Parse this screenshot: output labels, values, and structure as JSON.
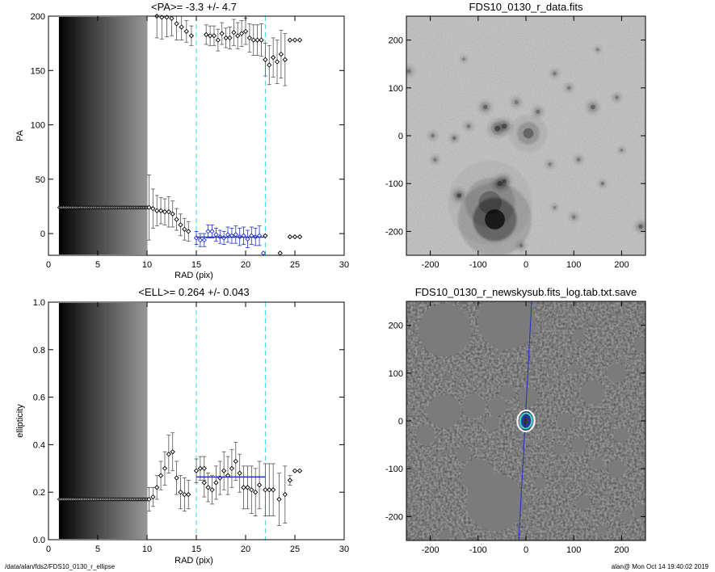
{
  "chart_data": [
    {
      "type": "scatter",
      "title": "<PA>=  -3.3 +/-   4.7",
      "xlabel": "RAD (pix)",
      "ylabel": "PA",
      "xlim": [
        0,
        30
      ],
      "ylim": [
        -20,
        200
      ],
      "xticks": [
        0,
        5,
        10,
        15,
        20,
        25,
        30
      ],
      "yticks": [
        0,
        50,
        100,
        150,
        200
      ],
      "grid": false,
      "dense_region": {
        "x_start": 1.1,
        "x_end": 10.0,
        "y_value": 24
      },
      "series": [
        {
          "kind": "points_with_errorbars",
          "color": "#000000",
          "points": [
            {
              "x": 10.2,
              "y": 24,
              "err": 30
            },
            {
              "x": 10.6,
              "y": 23,
              "err": 18
            },
            {
              "x": 11.0,
              "y": 21,
              "err": 14
            },
            {
              "x": 11.4,
              "y": 21,
              "err": 12
            },
            {
              "x": 11.8,
              "y": 20,
              "err": 12
            },
            {
              "x": 12.2,
              "y": 20,
              "err": 14
            },
            {
              "x": 12.6,
              "y": 18,
              "err": 12
            },
            {
              "x": 13.0,
              "y": 13,
              "err": 10
            },
            {
              "x": 13.4,
              "y": 8,
              "err": 10
            },
            {
              "x": 13.8,
              "y": 4,
              "err": 10
            },
            {
              "x": 14.2,
              "y": 2,
              "err": 9
            },
            {
              "x": 11.0,
              "y": 200,
              "err": 20
            },
            {
              "x": 11.5,
              "y": 199,
              "err": 20
            },
            {
              "x": 12.0,
              "y": 199,
              "err": 18
            },
            {
              "x": 12.5,
              "y": 198,
              "err": 16
            },
            {
              "x": 13.0,
              "y": 193,
              "err": 15
            },
            {
              "x": 13.5,
              "y": 190,
              "err": 12
            },
            {
              "x": 14.0,
              "y": 186,
              "err": 10
            },
            {
              "x": 14.5,
              "y": 182,
              "err": 9
            },
            {
              "x": 16.0,
              "y": 183,
              "err": 9
            },
            {
              "x": 16.4,
              "y": 182,
              "err": 9
            },
            {
              "x": 16.8,
              "y": 182,
              "err": 9
            },
            {
              "x": 17.2,
              "y": 178,
              "err": 10
            },
            {
              "x": 17.6,
              "y": 184,
              "err": 10
            },
            {
              "x": 18.0,
              "y": 180,
              "err": 9
            },
            {
              "x": 18.4,
              "y": 180,
              "err": 10
            },
            {
              "x": 18.8,
              "y": 185,
              "err": 12
            },
            {
              "x": 19.2,
              "y": 182,
              "err": 12
            },
            {
              "x": 19.6,
              "y": 184,
              "err": 12
            },
            {
              "x": 20.0,
              "y": 186,
              "err": 12
            },
            {
              "x": 20.4,
              "y": 180,
              "err": 13
            },
            {
              "x": 20.8,
              "y": 178,
              "err": 14
            },
            {
              "x": 21.2,
              "y": 178,
              "err": 14
            },
            {
              "x": 21.6,
              "y": 178,
              "err": 15
            },
            {
              "x": 22.0,
              "y": 160,
              "err": 15
            },
            {
              "x": 22.4,
              "y": 155,
              "err": 18
            },
            {
              "x": 22.8,
              "y": 162,
              "err": 18
            },
            {
              "x": 23.2,
              "y": 158,
              "err": 20
            },
            {
              "x": 23.6,
              "y": 165,
              "err": 22
            },
            {
              "x": 24.0,
              "y": 160,
              "err": 24
            },
            {
              "x": 24.5,
              "y": 178,
              "err": 0
            },
            {
              "x": 25.0,
              "y": 178,
              "err": 0
            },
            {
              "x": 25.5,
              "y": 178,
              "err": 0
            },
            {
              "x": 22.0,
              "y": -2,
              "err": 0
            },
            {
              "x": 23.5,
              "y": -18,
              "err": 0
            },
            {
              "x": 24.5,
              "y": -3,
              "err": 0
            },
            {
              "x": 25.0,
              "y": -3,
              "err": 0
            },
            {
              "x": 25.5,
              "y": -3,
              "err": 0
            }
          ]
        },
        {
          "kind": "points_with_errorbars",
          "color": "#1f2fd1",
          "points": [
            {
              "x": 15.0,
              "y": -4,
              "err": 6
            },
            {
              "x": 15.4,
              "y": -6,
              "err": 6
            },
            {
              "x": 15.8,
              "y": -6,
              "err": 6
            },
            {
              "x": 16.2,
              "y": 2,
              "err": 6
            },
            {
              "x": 16.6,
              "y": 2,
              "err": 6
            },
            {
              "x": 17.0,
              "y": -1,
              "err": 6
            },
            {
              "x": 17.4,
              "y": -3,
              "err": 6
            },
            {
              "x": 17.8,
              "y": -4,
              "err": 6
            },
            {
              "x": 18.2,
              "y": -1,
              "err": 7
            },
            {
              "x": 18.6,
              "y": -2,
              "err": 7
            },
            {
              "x": 19.0,
              "y": -1,
              "err": 8
            },
            {
              "x": 19.4,
              "y": -3,
              "err": 8
            },
            {
              "x": 19.8,
              "y": -2,
              "err": 8
            },
            {
              "x": 20.2,
              "y": -5,
              "err": 8
            },
            {
              "x": 20.6,
              "y": -2,
              "err": 8
            },
            {
              "x": 21.0,
              "y": -3,
              "err": 8
            },
            {
              "x": 21.4,
              "y": -2,
              "err": 9
            },
            {
              "x": 21.8,
              "y": -18,
              "err": 0
            }
          ]
        }
      ],
      "mean_line": {
        "x0": 15,
        "x1": 22,
        "y": -3.3,
        "color": "#1f2fd1"
      },
      "vlines": [
        {
          "x": 15,
          "color": "#33d6e8"
        },
        {
          "x": 22,
          "color": "#33d6e8"
        }
      ]
    },
    {
      "type": "scatter",
      "title": "<ELL>= 0.264 +/-  0.043",
      "xlabel": "RAD (pix)",
      "ylabel": "ellipticity",
      "xlim": [
        0,
        30
      ],
      "ylim": [
        0,
        1
      ],
      "xticks": [
        0,
        5,
        10,
        15,
        20,
        25,
        30
      ],
      "yticks": [
        0.0,
        0.2,
        0.4,
        0.6,
        0.8,
        1.0
      ],
      "grid": false,
      "dense_region": {
        "x_start": 1.1,
        "x_end": 10.0,
        "y_value": 0.17
      },
      "series": [
        {
          "kind": "points_with_errorbars",
          "color": "#000000",
          "points": [
            {
              "x": 10.2,
              "y": 0.17,
              "err": 0.05
            },
            {
              "x": 10.6,
              "y": 0.18,
              "err": 0.04
            },
            {
              "x": 11.0,
              "y": 0.22,
              "err": 0.05
            },
            {
              "x": 11.4,
              "y": 0.27,
              "err": 0.06
            },
            {
              "x": 11.8,
              "y": 0.3,
              "err": 0.07
            },
            {
              "x": 12.2,
              "y": 0.36,
              "err": 0.08
            },
            {
              "x": 12.6,
              "y": 0.37,
              "err": 0.08
            },
            {
              "x": 13.0,
              "y": 0.26,
              "err": 0.07
            },
            {
              "x": 13.4,
              "y": 0.2,
              "err": 0.07
            },
            {
              "x": 13.8,
              "y": 0.19,
              "err": 0.07
            },
            {
              "x": 14.2,
              "y": 0.19,
              "err": 0.06
            },
            {
              "x": 15.8,
              "y": 0.24,
              "err": 0.06
            },
            {
              "x": 16.2,
              "y": 0.22,
              "err": 0.06
            },
            {
              "x": 16.6,
              "y": 0.21,
              "err": 0.06
            },
            {
              "x": 17.0,
              "y": 0.24,
              "err": 0.07
            },
            {
              "x": 17.4,
              "y": 0.26,
              "err": 0.07
            },
            {
              "x": 17.8,
              "y": 0.29,
              "err": 0.08
            },
            {
              "x": 18.2,
              "y": 0.27,
              "err": 0.08
            },
            {
              "x": 18.6,
              "y": 0.3,
              "err": 0.08
            },
            {
              "x": 19.0,
              "y": 0.33,
              "err": 0.08
            },
            {
              "x": 19.4,
              "y": 0.28,
              "err": 0.08
            },
            {
              "x": 19.8,
              "y": 0.22,
              "err": 0.09
            },
            {
              "x": 20.2,
              "y": 0.22,
              "err": 0.09
            },
            {
              "x": 20.6,
              "y": 0.21,
              "err": 0.1
            },
            {
              "x": 21.0,
              "y": 0.2,
              "err": 0.1
            },
            {
              "x": 21.4,
              "y": 0.23,
              "err": 0.1
            },
            {
              "x": 22.0,
              "y": 0.21,
              "err": 0.11
            },
            {
              "x": 22.4,
              "y": 0.21,
              "err": 0.11
            },
            {
              "x": 22.8,
              "y": 0.21,
              "err": 0.11
            },
            {
              "x": 23.4,
              "y": 0.17,
              "err": 0.11
            },
            {
              "x": 24.0,
              "y": 0.19,
              "err": 0.12
            },
            {
              "x": 24.5,
              "y": 0.25,
              "err": 0.02
            },
            {
              "x": 25.0,
              "y": 0.29,
              "err": 0.0
            },
            {
              "x": 25.5,
              "y": 0.29,
              "err": 0.0
            }
          ]
        },
        {
          "kind": "points_with_errorbars",
          "color": "#000000",
          "points": [
            {
              "x": 15.0,
              "y": 0.29,
              "err": 0.05
            },
            {
              "x": 15.4,
              "y": 0.3,
              "err": 0.05
            },
            {
              "x": 15.8,
              "y": 0.3,
              "err": 0.05
            }
          ]
        }
      ],
      "mean_line": {
        "x0": 15,
        "x1": 22,
        "y": 0.264,
        "color": "#1f2fd1"
      },
      "vlines": [
        {
          "x": 15,
          "color": "#33d6e8"
        },
        {
          "x": 22,
          "color": "#33d6e8"
        }
      ]
    },
    {
      "type": "heatmap",
      "title": "FDS10_0130_r_data.fits",
      "xlim": [
        -250,
        250
      ],
      "ylim": [
        -250,
        250
      ],
      "xticks": [
        -200,
        -100,
        0,
        100,
        200
      ],
      "yticks": [
        -200,
        -100,
        0,
        100,
        200
      ],
      "colormap": "inverted grayscale",
      "sources": [
        {
          "x": -65,
          "y": -175,
          "r": 35,
          "peak": 1.0
        },
        {
          "x": -75,
          "y": -140,
          "r": 40,
          "peak": 0.35
        },
        {
          "x": 5,
          "y": 5,
          "r": 18,
          "peak": 0.45
        },
        {
          "x": -60,
          "y": 15,
          "r": 10,
          "peak": 0.6
        },
        {
          "x": -45,
          "y": 20,
          "r": 9,
          "peak": 0.55
        },
        {
          "x": -85,
          "y": 60,
          "r": 8,
          "peak": 0.45
        },
        {
          "x": 25,
          "y": 50,
          "r": 7,
          "peak": 0.4
        },
        {
          "x": -20,
          "y": 70,
          "r": 7,
          "peak": 0.35
        },
        {
          "x": -55,
          "y": -100,
          "r": 9,
          "peak": 0.55
        },
        {
          "x": -45,
          "y": -95,
          "r": 8,
          "peak": 0.5
        },
        {
          "x": -120,
          "y": 20,
          "r": 6,
          "peak": 0.35
        },
        {
          "x": -150,
          "y": -5,
          "r": 6,
          "peak": 0.4
        },
        {
          "x": -140,
          "y": -125,
          "r": 8,
          "peak": 0.6
        },
        {
          "x": -245,
          "y": 135,
          "r": 7,
          "peak": 0.35
        },
        {
          "x": -195,
          "y": 0,
          "r": 6,
          "peak": 0.35
        },
        {
          "x": -190,
          "y": -50,
          "r": 6,
          "peak": 0.35
        },
        {
          "x": 140,
          "y": 60,
          "r": 8,
          "peak": 0.45
        },
        {
          "x": 60,
          "y": 130,
          "r": 6,
          "peak": 0.35
        },
        {
          "x": 90,
          "y": 100,
          "r": 6,
          "peak": 0.35
        },
        {
          "x": 110,
          "y": -50,
          "r": 6,
          "peak": 0.35
        },
        {
          "x": 190,
          "y": 80,
          "r": 6,
          "peak": 0.35
        },
        {
          "x": 160,
          "y": -100,
          "r": 5,
          "peak": 0.4
        },
        {
          "x": 240,
          "y": -190,
          "r": 7,
          "peak": 0.5
        },
        {
          "x": 100,
          "y": -170,
          "r": 6,
          "peak": 0.35
        },
        {
          "x": -10,
          "y": -230,
          "r": 6,
          "peak": 0.35
        },
        {
          "x": 50,
          "y": -60,
          "r": 6,
          "peak": 0.3
        },
        {
          "x": 60,
          "y": -150,
          "r": 5,
          "peak": 0.3
        },
        {
          "x": -130,
          "y": 160,
          "r": 5,
          "peak": 0.3
        },
        {
          "x": 150,
          "y": 180,
          "r": 5,
          "peak": 0.3
        },
        {
          "x": 200,
          "y": -30,
          "r": 5,
          "peak": 0.3
        }
      ]
    },
    {
      "type": "heatmap",
      "title": "FDS10_0130_r_newskysub.fits_log.tab.txt.save",
      "xlim": [
        -250,
        250
      ],
      "ylim": [
        -250,
        250
      ],
      "xticks": [
        -200,
        -100,
        0,
        100,
        200
      ],
      "yticks": [
        -200,
        -100,
        0,
        100,
        200
      ],
      "colormap": "grayscale, masked regions gray",
      "masks": [
        {
          "x": -65,
          "y": -170,
          "r": 60
        },
        {
          "x": -100,
          "y": -115,
          "r": 35
        },
        {
          "x": -170,
          "y": 190,
          "r": 55
        },
        {
          "x": -40,
          "y": 210,
          "r": 60
        },
        {
          "x": -170,
          "y": 20,
          "r": 35
        },
        {
          "x": -110,
          "y": 30,
          "r": 25
        },
        {
          "x": -60,
          "y": 30,
          "r": 20
        },
        {
          "x": -40,
          "y": 60,
          "r": 15
        },
        {
          "x": 5,
          "y": 50,
          "r": 20
        },
        {
          "x": -70,
          "y": -5,
          "r": 15
        },
        {
          "x": -210,
          "y": -30,
          "r": 20
        },
        {
          "x": -130,
          "y": -70,
          "r": 15
        },
        {
          "x": 140,
          "y": 60,
          "r": 25
        },
        {
          "x": 190,
          "y": 100,
          "r": 20
        },
        {
          "x": 110,
          "y": -50,
          "r": 15
        },
        {
          "x": 80,
          "y": 0,
          "r": 15
        },
        {
          "x": 200,
          "y": -30,
          "r": 15
        },
        {
          "x": 190,
          "y": -100,
          "r": 18
        },
        {
          "x": 150,
          "y": -90,
          "r": 12
        },
        {
          "x": 120,
          "y": -170,
          "r": 15
        },
        {
          "x": 240,
          "y": -190,
          "r": 15
        },
        {
          "x": 210,
          "y": -200,
          "r": 12
        },
        {
          "x": 160,
          "y": -230,
          "r": 10
        },
        {
          "x": 70,
          "y": -60,
          "r": 12
        },
        {
          "x": 30,
          "y": -130,
          "r": 12
        },
        {
          "x": -170,
          "y": -240,
          "r": 12
        },
        {
          "x": 240,
          "y": 160,
          "r": 15
        },
        {
          "x": 110,
          "y": 180,
          "r": 12
        },
        {
          "x": 100,
          "y": 110,
          "r": 10
        }
      ],
      "overlay": {
        "major_axis_line": {
          "x0": -15,
          "y0": -250,
          "x1": 12,
          "y1": 250,
          "color": "#2030c8"
        },
        "ellipses": [
          {
            "x": 0,
            "y": 0,
            "a": 22,
            "b": 18,
            "color": "#ffffff"
          },
          {
            "x": 0,
            "y": 0,
            "a": 16,
            "b": 12,
            "color": "#33d6e8"
          },
          {
            "x": 0,
            "y": 0,
            "a": 10,
            "b": 7,
            "color": "#2030c8"
          }
        ]
      }
    }
  ],
  "footer": {
    "left": "/data/alan/fds2/FDS10_0130_r_ellipse",
    "right": "alan@  Mon Oct 14 19:40:02 2019"
  }
}
